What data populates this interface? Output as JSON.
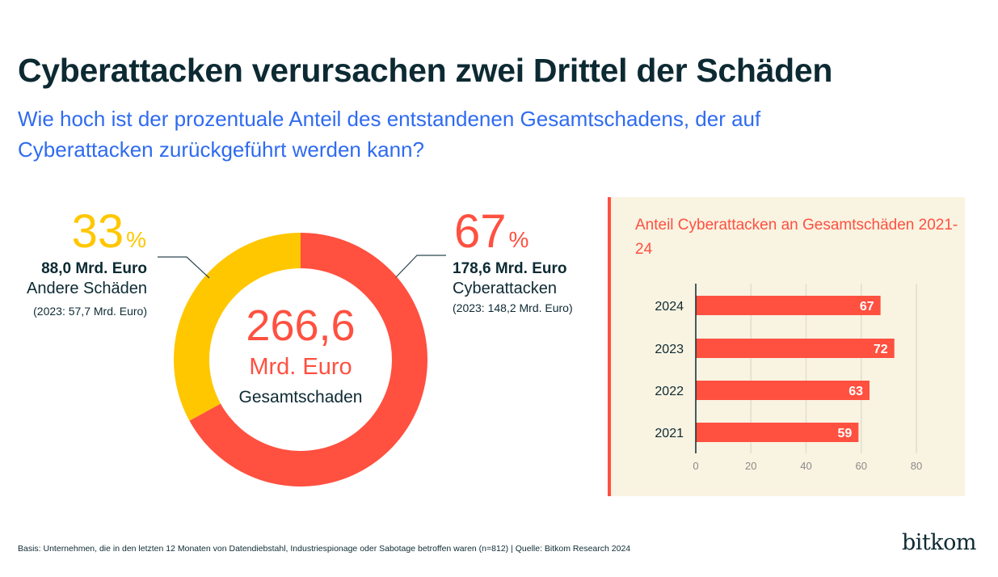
{
  "header": {
    "title": "Cyberattacken verursachen zwei Drittel der Schäden",
    "subtitle": "Wie hoch ist der prozentuale Anteil des entstandenen Gesamtschadens, der auf Cyberattacken zurückgeführt werden kann?"
  },
  "colors": {
    "red": "#ff5040",
    "yellow": "#ffc700",
    "dark": "#0d2a33",
    "blue": "#2f6bf0",
    "panel_bg": "#f9f3e1",
    "grid": "#e3ddd0"
  },
  "donut": {
    "center_value": "266,6",
    "center_unit": "Mrd. Euro",
    "center_label": "Gesamtschaden",
    "segments": [
      {
        "name": "Cyberattacken",
        "percent": 67,
        "percent_label": "67",
        "percent_sign": "%",
        "amount": "178,6 Mrd. Euro",
        "label": "Cyberattacken",
        "previous": "(2023: 148,2 Mrd. Euro)",
        "color": "#ff5040"
      },
      {
        "name": "Andere Schäden",
        "percent": 33,
        "percent_label": "33",
        "percent_sign": "%",
        "amount": "88,0 Mrd. Euro",
        "label": "Andere Schäden",
        "previous": "(2023: 57,7 Mrd. Euro)",
        "color": "#ffc700"
      }
    ]
  },
  "chart_data": [
    {
      "type": "pie",
      "title": "Gesamtschaden 266,6 Mrd. Euro",
      "categories": [
        "Cyberattacken",
        "Andere Schäden"
      ],
      "values": [
        67,
        33
      ],
      "amounts_mrd_euro": [
        178.6,
        88.0
      ],
      "previous_amounts_mrd_euro_2023": [
        148.2,
        57.7
      ],
      "total_mrd_euro": 266.6,
      "donut": true
    },
    {
      "type": "bar",
      "orientation": "horizontal",
      "title": "Anteil Cyberattacken an Gesamtschäden 2021-24",
      "categories": [
        "2024",
        "2023",
        "2022",
        "2021"
      ],
      "values": [
        67,
        72,
        63,
        59
      ],
      "xlabel": "",
      "ylabel": "",
      "xlim": [
        0,
        80
      ],
      "xticks": [
        0,
        20,
        40,
        60,
        80
      ],
      "grid": true,
      "data_labels": true
    }
  ],
  "bar_panel": {
    "title": "Anteil Cyberattacken an Gesamtschäden 2021-24"
  },
  "footer": {
    "note": "Basis: Unternehmen, die in den letzten 12 Monaten von Datendiebstahl, Industriespionage oder Sabotage betroffen waren (n=812) | Quelle: Bitkom Research 2024",
    "logo": "bitkom"
  }
}
